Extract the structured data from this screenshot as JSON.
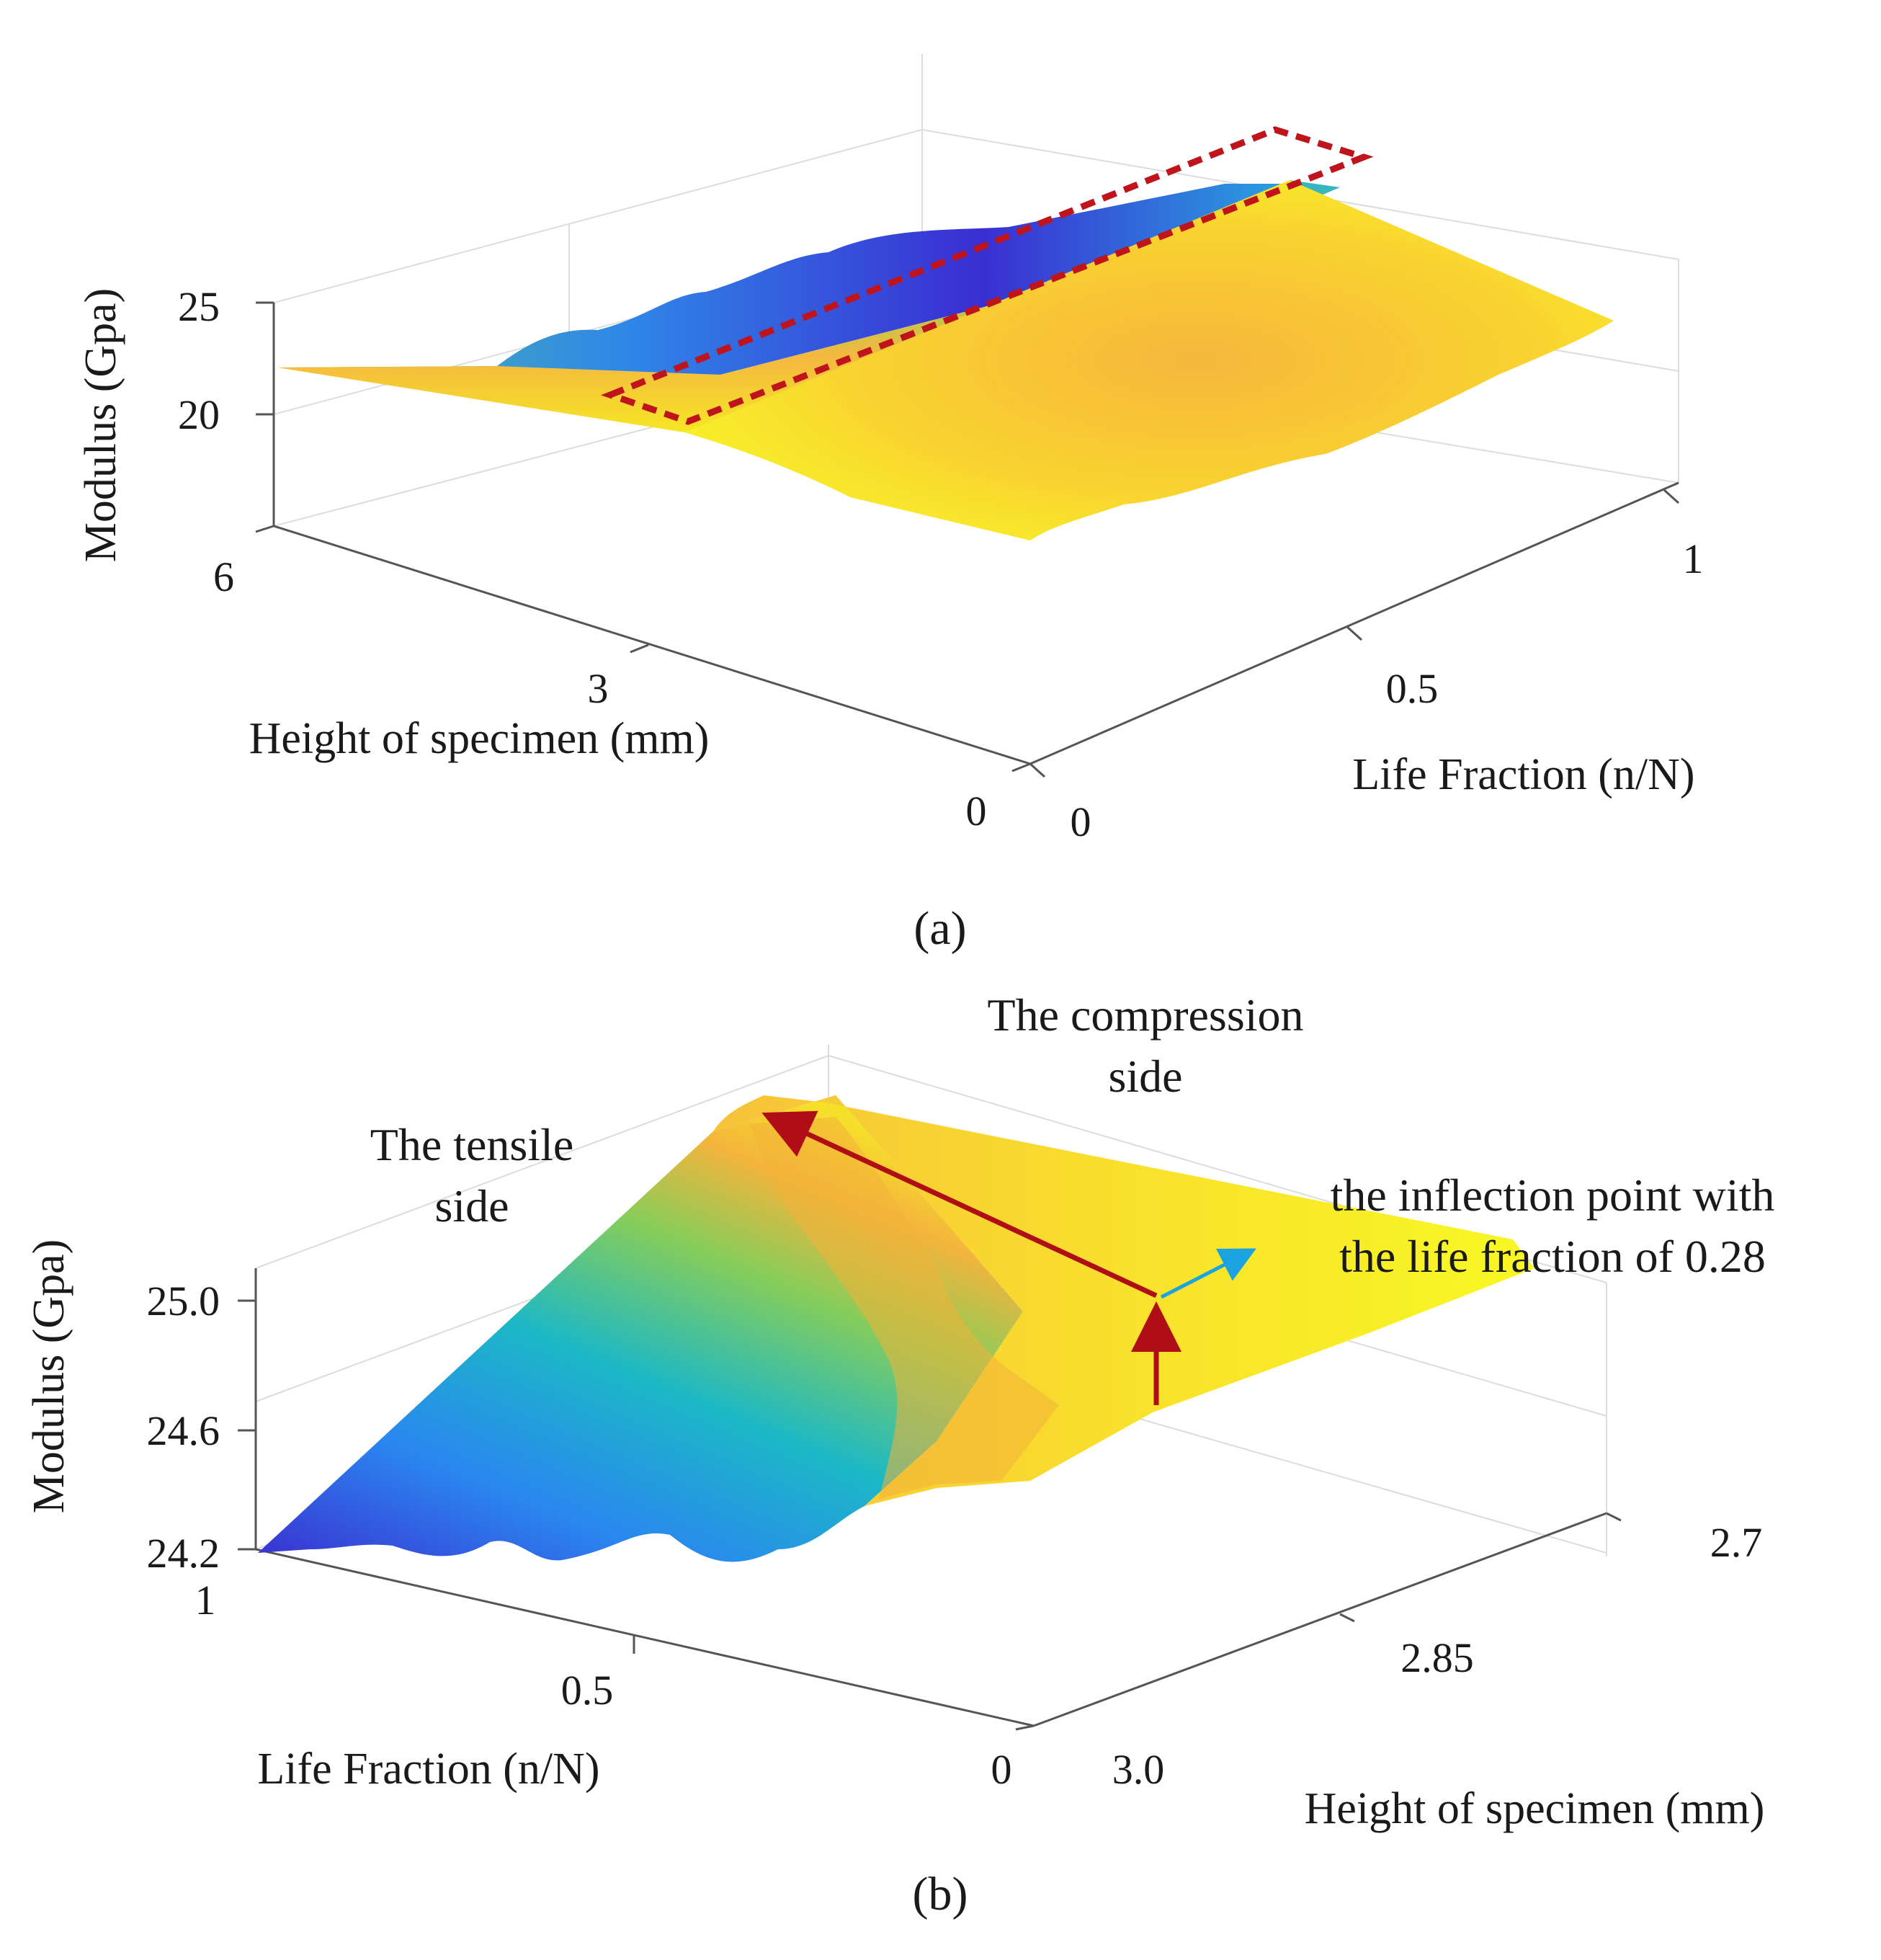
{
  "chart_data": [
    {
      "type": "surface3d",
      "panel_label": "(a)",
      "xlabel": "Height of specimen (mm)",
      "ylabel": "Life Fraction (n/N)",
      "zlabel": "Modulus (Gpa)",
      "xticks": [
        "6",
        "3",
        "0"
      ],
      "yticks": [
        "0",
        "0.5",
        "1"
      ],
      "zticks": [
        "20",
        "25"
      ],
      "xlim": [
        0,
        6
      ],
      "ylim": [
        0,
        1
      ],
      "zlim": [
        15,
        28
      ],
      "colormap": "parula",
      "highlight_box_color": "#c0141c",
      "grid": "on"
    },
    {
      "type": "surface3d",
      "panel_label": "(b)",
      "xlabel": "Life Fraction (n/N)",
      "ylabel": "Height of specimen (mm)",
      "zlabel": "Modulus (Gpa)",
      "xticks": [
        "1",
        "0.5",
        "0"
      ],
      "yticks": [
        "3.0",
        "2.85",
        "2.7"
      ],
      "zticks": [
        "24.2",
        "24.6",
        "25.0"
      ],
      "xlim": [
        0,
        1
      ],
      "ylim": [
        2.7,
        3.0
      ],
      "zlim": [
        24.2,
        25.2
      ],
      "colormap": "parula",
      "annotations": {
        "tensile": [
          "The tensile",
          "side"
        ],
        "compression": [
          "The compression",
          "side"
        ],
        "inflection": [
          "the inflection point with",
          "the life fraction of 0.28"
        ]
      },
      "arrow_color": "#b00e16",
      "pointer_color": "#1aa3e0",
      "grid": "on"
    }
  ]
}
